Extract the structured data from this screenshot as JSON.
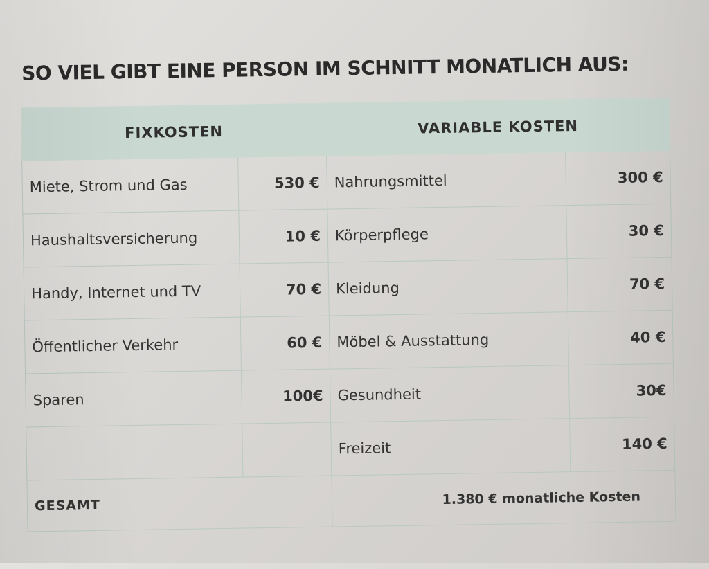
{
  "title": "SO VIEL GIBT EINE PERSON IM SCHNITT MONATLICH AUS:",
  "headers": {
    "fixed": "FIXKOSTEN",
    "variable": "VARIABLE KOSTEN"
  },
  "rows": [
    {
      "fixed_label": "Miete, Strom und Gas",
      "fixed_amount": "530 €",
      "variable_label": "Nahrungsmittel",
      "variable_amount": "300 €"
    },
    {
      "fixed_label": "Haushaltsversicherung",
      "fixed_amount": "10 €",
      "variable_label": "Körperpflege",
      "variable_amount": "30 €"
    },
    {
      "fixed_label": "Handy, Internet und TV",
      "fixed_amount": "70 €",
      "variable_label": "Kleidung",
      "variable_amount": "70 €"
    },
    {
      "fixed_label": "Öffentlicher Verkehr",
      "fixed_amount": "60 €",
      "variable_label": "Möbel & Ausstattung",
      "variable_amount": "40 €"
    },
    {
      "fixed_label": "Sparen",
      "fixed_amount": "100€",
      "variable_label": "Gesundheit",
      "variable_amount": "30€"
    },
    {
      "fixed_label": "",
      "fixed_amount": "",
      "variable_label": "Freizeit",
      "variable_amount": "140 €"
    }
  ],
  "total": {
    "label": "GESAMT",
    "value": "1.380 € monatliche Kosten"
  },
  "colors": {
    "header_bg": "#c9d9d2",
    "border": "#b9c9c2",
    "paper": "#d8d6d3"
  }
}
